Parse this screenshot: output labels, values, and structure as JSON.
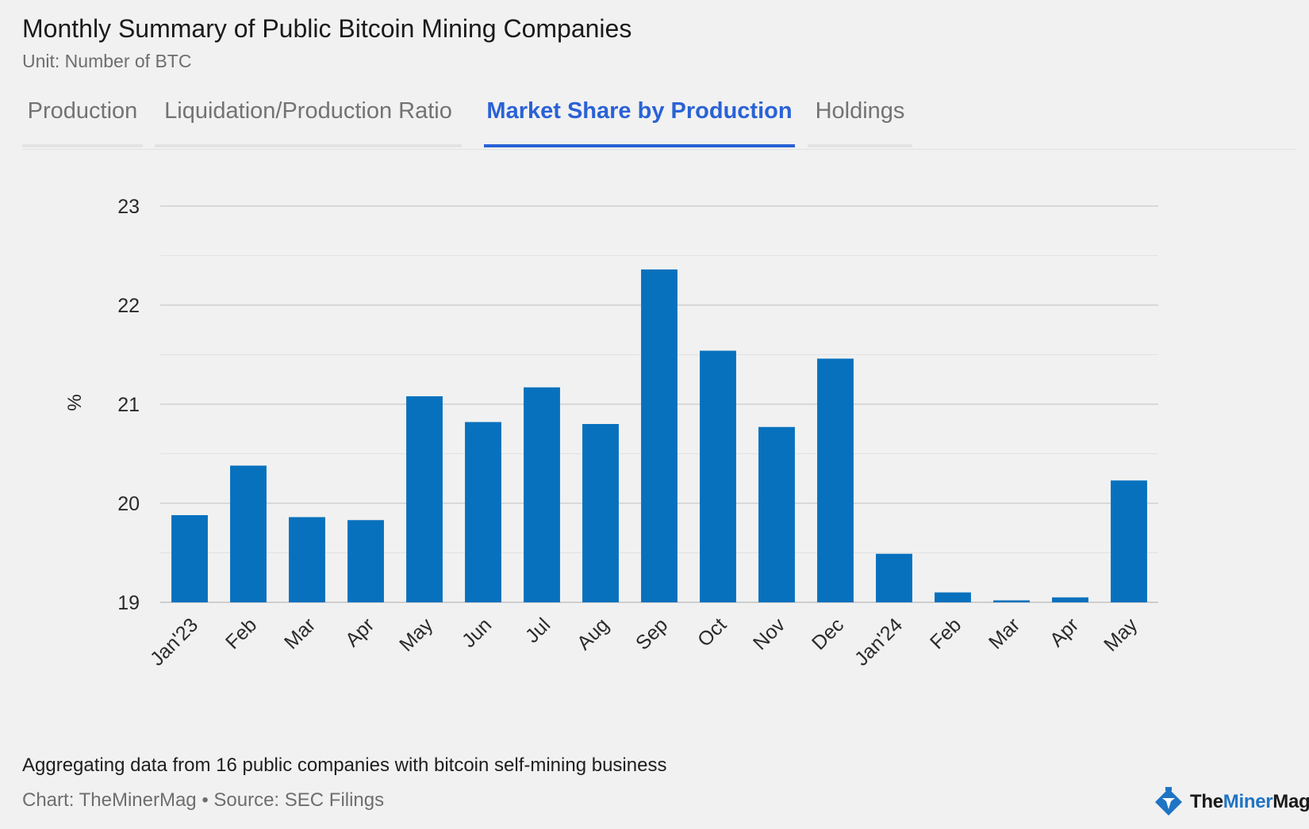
{
  "header": {
    "title": "Monthly Summary of Public Bitcoin Mining Companies",
    "subtitle": "Unit: Number of BTC"
  },
  "tabs": [
    {
      "label": "Production",
      "active": false
    },
    {
      "label": "Liquidation/Production Ratio",
      "active": false
    },
    {
      "label": "Market Share by Production",
      "active": true
    },
    {
      "label": "Holdings",
      "active": false
    }
  ],
  "chart_data": {
    "type": "bar",
    "title": "Market Share by Production",
    "xlabel": "",
    "ylabel": "%",
    "ylim": [
      19,
      23
    ],
    "yticks": [
      19,
      20,
      21,
      22,
      23
    ],
    "grid": true,
    "color": "#0871bd",
    "categories": [
      "Jan'23",
      "Feb",
      "Mar",
      "Apr",
      "May",
      "Jun",
      "Jul",
      "Aug",
      "Sep",
      "Oct",
      "Nov",
      "Dec",
      "Jan'24",
      "Feb",
      "Mar",
      "Apr",
      "May"
    ],
    "values": [
      19.88,
      20.38,
      19.86,
      19.83,
      21.08,
      20.82,
      21.17,
      20.8,
      22.36,
      21.54,
      20.77,
      21.46,
      19.49,
      19.1,
      19.02,
      19.05,
      20.23
    ]
  },
  "footer": {
    "caption": "Aggregating data from 16 public companies with bitcoin self-mining business",
    "source": "Chart: TheMinerMag • Source: SEC Filings",
    "logo_text_a": "The",
    "logo_text_b": "Miner",
    "logo_text_c": "Mag"
  },
  "colors": {
    "accent": "#2a62d6",
    "bar": "#0871bd"
  },
  "icons": {
    "logo": "theminermag-logo-icon"
  }
}
